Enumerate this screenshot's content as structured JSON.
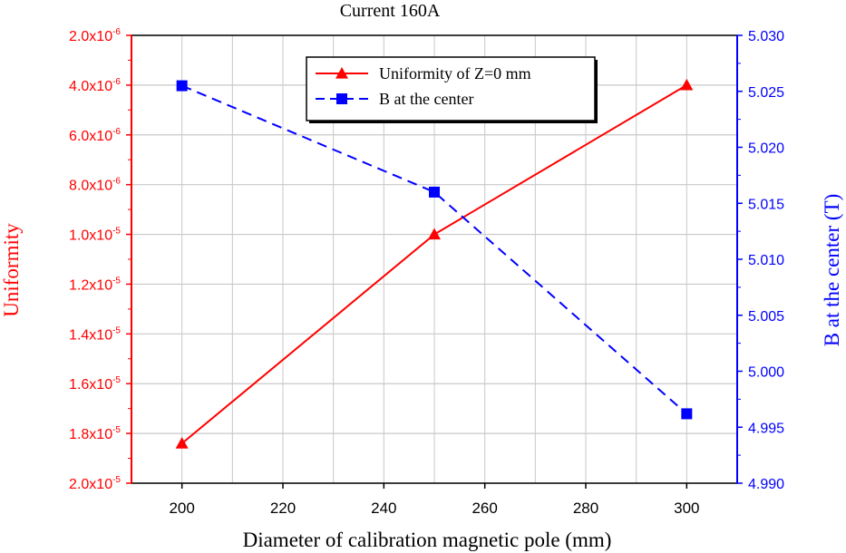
{
  "chart_data": {
    "type": "line",
    "title": "Current 160A",
    "xlabel": "Diameter of calibration magnetic pole (mm)",
    "ylabel_left": "Uniformity",
    "ylabel_right": "B at the center (T)",
    "xlim": [
      190,
      310
    ],
    "x_ticks": [
      200,
      220,
      240,
      260,
      280,
      300
    ],
    "x_tick_labels": [
      "200",
      "220",
      "240",
      "260",
      "280",
      "300"
    ],
    "y_left": {
      "lim": [
        2e-06,
        2e-05
      ],
      "inverted": true,
      "ticks": [
        2e-06,
        4e-06,
        6e-06,
        8e-06,
        1e-05,
        1.2e-05,
        1.4e-05,
        1.6e-05,
        1.8e-05,
        2e-05
      ],
      "tick_labels": [
        {
          "m": "2.0x10",
          "e": "-6"
        },
        {
          "m": "4.0x10",
          "e": "-6"
        },
        {
          "m": "6.0x10",
          "e": "-6"
        },
        {
          "m": "8.0x10",
          "e": "-6"
        },
        {
          "m": "1.0x10",
          "e": "-5"
        },
        {
          "m": "1.2x10",
          "e": "-5"
        },
        {
          "m": "1.4x10",
          "e": "-5"
        },
        {
          "m": "1.6x10",
          "e": "-5"
        },
        {
          "m": "1.8x10",
          "e": "-5"
        },
        {
          "m": "2.0x10",
          "e": "-5"
        }
      ],
      "color": "#ff0000"
    },
    "y_right": {
      "lim": [
        4.99,
        5.03
      ],
      "ticks": [
        4.99,
        4.995,
        5.0,
        5.005,
        5.01,
        5.015,
        5.02,
        5.025,
        5.03
      ],
      "tick_labels": [
        "4.990",
        "4.995",
        "5.000",
        "5.005",
        "5.010",
        "5.015",
        "5.020",
        "5.025",
        "5.030"
      ],
      "color": "#0000ff"
    },
    "grid": true,
    "legend_position": "top-center",
    "series": [
      {
        "name": "Uniformity of Z=0 mm",
        "axis": "left",
        "x": [
          200,
          250,
          300
        ],
        "values": [
          1.84e-05,
          1e-05,
          4e-06
        ],
        "color": "#ff0000",
        "marker": "triangle",
        "line": "solid"
      },
      {
        "name": "B at the center",
        "axis": "right",
        "x": [
          200,
          250,
          300
        ],
        "values": [
          5.0255,
          5.016,
          4.9962
        ],
        "color": "#0000ff",
        "marker": "square",
        "line": "dashed"
      }
    ]
  }
}
